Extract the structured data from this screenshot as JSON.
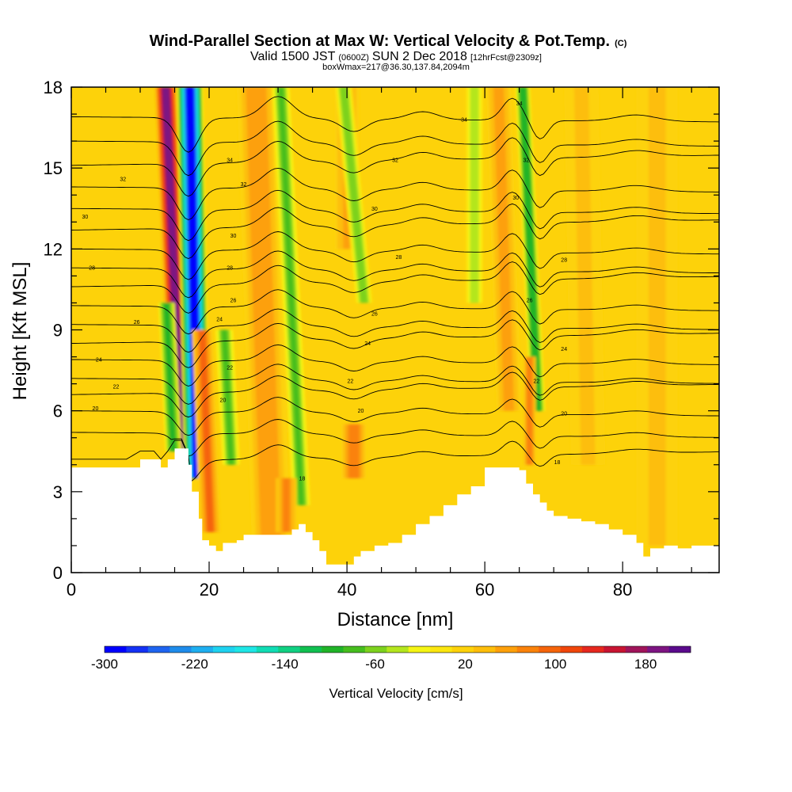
{
  "title": {
    "main": "Wind-Parallel Section at Max W: Vertical Velocity & Pot.Temp.",
    "main_unit": "(C)",
    "valid_prefix": "Valid 1500 JST",
    "valid_utc": "(0600Z)",
    "valid_date": "SUN 2 Dec 2018",
    "forecast": "[12hrFcst@2309z]",
    "box": "boxWmax=217@36.30,137.84,2094m"
  },
  "chart_data": {
    "type": "heatmap",
    "xlabel": "Distance [nm]",
    "ylabel": "Height [Kft MSL]",
    "xlim": [
      0,
      94
    ],
    "ylim": [
      0,
      18
    ],
    "x_ticks": [
      0,
      20,
      40,
      60,
      80
    ],
    "y_ticks": [
      0,
      3,
      6,
      9,
      12,
      15,
      18
    ],
    "colorbar": {
      "label": "Vertical Velocity [cm/s]",
      "tick_labels": [
        -300,
        -220,
        -140,
        -60,
        20,
        100,
        180
      ],
      "bounds": [
        -300,
        -280,
        -260,
        -240,
        -220,
        -200,
        -180,
        -160,
        -140,
        -120,
        -100,
        -80,
        -60,
        -40,
        -20,
        0,
        20,
        40,
        60,
        80,
        100,
        120,
        140,
        160,
        180,
        200,
        220
      ],
      "colors": [
        "#0000ff",
        "#1432f5",
        "#1e64f0",
        "#1e8ceb",
        "#1eaff0",
        "#1ed2f0",
        "#1ee6e6",
        "#10dcb4",
        "#10d082",
        "#10c050",
        "#20b428",
        "#46be1e",
        "#7dd21e",
        "#b4e61e",
        "#f5f514",
        "#fbe60f",
        "#fdd20a",
        "#fdbe0a",
        "#fda00a",
        "#fa820a",
        "#f5640a",
        "#f0460a",
        "#e6281e",
        "#c81432",
        "#a0145a",
        "#7d1482",
        "#5a0a8c"
      ]
    },
    "background_w": 25,
    "velocity_features": [
      {
        "x": 16.0,
        "y0": 4.5,
        "y1": 18.0,
        "lean": -2.3,
        "width": 1.6,
        "value": 210
      },
      {
        "x": 18.3,
        "y0": 3.5,
        "y1": 18.0,
        "lean": -1.1,
        "width": 1.9,
        "value": -290
      },
      {
        "x": 14.8,
        "y0": 4.5,
        "y1": 10.0,
        "lean": -1.0,
        "width": 1.2,
        "value": -90
      },
      {
        "x": 20.2,
        "y0": 1.5,
        "y1": 9.0,
        "lean": -1.2,
        "width": 1.5,
        "value": 100
      },
      {
        "x": 23.2,
        "y0": 4.0,
        "y1": 9.0,
        "lean": -1.0,
        "width": 1.3,
        "value": -70
      },
      {
        "x": 29.0,
        "y0": 1.0,
        "y1": 18.0,
        "lean": -2.2,
        "width": 2.8,
        "value": 75
      },
      {
        "x": 33.4,
        "y0": 2.5,
        "y1": 18.0,
        "lean": -3.0,
        "width": 1.3,
        "value": -70
      },
      {
        "x": 31.2,
        "y0": 1.5,
        "y1": 3.5,
        "lean": 0.0,
        "width": 1.5,
        "value": 80
      },
      {
        "x": 41.0,
        "y0": 3.5,
        "y1": 5.5,
        "lean": 0.0,
        "width": 1.8,
        "value": 95
      },
      {
        "x": 40.0,
        "y0": 12.0,
        "y1": 18.0,
        "lean": 0.0,
        "width": 1.8,
        "value": 60
      },
      {
        "x": 42.5,
        "y0": 10.0,
        "y1": 18.0,
        "lean": -3.0,
        "width": 1.2,
        "value": -60
      },
      {
        "x": 58.5,
        "y0": 10.0,
        "y1": 18.0,
        "lean": 0.0,
        "width": 1.2,
        "value": -40
      },
      {
        "x": 63.5,
        "y0": 6.0,
        "y1": 18.0,
        "lean": -1.5,
        "width": 1.8,
        "value": 70
      },
      {
        "x": 67.7,
        "y0": 6.0,
        "y1": 18.0,
        "lean": -2.2,
        "width": 1.1,
        "value": -100
      },
      {
        "x": 66.5,
        "y0": 4.0,
        "y1": 8.0,
        "lean": 0.0,
        "width": 0.9,
        "value": 90
      },
      {
        "x": 75.0,
        "y0": 4.0,
        "y1": 18.0,
        "lean": -1.0,
        "width": 2.5,
        "value": 45
      },
      {
        "x": 85.0,
        "y0": 1.0,
        "y1": 18.0,
        "lean": 0.0,
        "width": 3.0,
        "value": 45
      }
    ],
    "terrain": {
      "x": [
        0,
        4,
        6,
        8,
        10,
        12,
        13,
        14,
        15,
        16,
        17,
        17.5,
        18,
        18.5,
        19,
        20,
        21,
        22,
        23,
        24,
        25,
        27,
        29,
        31,
        32,
        33,
        34,
        35,
        36,
        37,
        38,
        39,
        40,
        41,
        42,
        44,
        46,
        48,
        50,
        52,
        54,
        56,
        58,
        60,
        62,
        64,
        65,
        66,
        67,
        68,
        69,
        70,
        72,
        74,
        76,
        78,
        80,
        82,
        83,
        84,
        86,
        88,
        90,
        92,
        94
      ],
      "height": [
        3.9,
        3.9,
        3.9,
        3.9,
        4.2,
        4.2,
        3.9,
        4.2,
        4.6,
        4.6,
        4.0,
        3.0,
        3.0,
        2.0,
        1.2,
        1.0,
        0.8,
        1.1,
        1.1,
        1.2,
        1.4,
        1.4,
        1.4,
        1.4,
        1.6,
        1.8,
        1.5,
        1.2,
        0.8,
        0.3,
        0.3,
        0.3,
        0.3,
        0.6,
        0.8,
        1.0,
        1.1,
        1.4,
        1.8,
        2.1,
        2.5,
        2.9,
        3.2,
        3.9,
        3.9,
        3.9,
        3.8,
        3.3,
        2.9,
        2.6,
        2.3,
        2.1,
        2.0,
        1.9,
        1.8,
        1.6,
        1.4,
        1.1,
        0.6,
        0.9,
        1.0,
        0.9,
        1.0,
        1.0,
        1.0
      ]
    },
    "isentropes": {
      "levels": [
        18,
        19,
        20,
        21,
        22,
        23,
        24,
        25,
        26,
        27,
        28,
        29,
        30,
        31,
        32,
        33,
        34,
        35
      ],
      "heights_at_x0": [
        4.1,
        5.2,
        6.0,
        6.6,
        7.2,
        7.9,
        8.5,
        9.2,
        9.9,
        10.6,
        11.3,
        12.0,
        12.7,
        13.5,
        14.3,
        15.1,
        16.0,
        16.9
      ],
      "labels": [
        {
          "text": "34",
          "x": 57.0,
          "y": 16.8
        },
        {
          "text": "32",
          "x": 47.0,
          "y": 15.3
        },
        {
          "text": "30",
          "x": 44.0,
          "y": 13.5
        },
        {
          "text": "28",
          "x": 47.5,
          "y": 11.7
        },
        {
          "text": "26",
          "x": 44.0,
          "y": 9.6
        },
        {
          "text": "24",
          "x": 43.0,
          "y": 8.5
        },
        {
          "text": "22",
          "x": 40.5,
          "y": 7.1
        },
        {
          "text": "20",
          "x": 42.0,
          "y": 6.0
        },
        {
          "text": "18",
          "x": 33.5,
          "y": 3.5
        },
        {
          "text": "32",
          "x": 7.5,
          "y": 14.6
        },
        {
          "text": "30",
          "x": 2.0,
          "y": 13.2
        },
        {
          "text": "28",
          "x": 3.0,
          "y": 11.3
        },
        {
          "text": "26",
          "x": 9.5,
          "y": 9.3
        },
        {
          "text": "24",
          "x": 4.0,
          "y": 7.9
        },
        {
          "text": "22",
          "x": 6.5,
          "y": 6.9
        },
        {
          "text": "20",
          "x": 3.5,
          "y": 6.1
        },
        {
          "text": "34",
          "x": 23.0,
          "y": 15.3
        },
        {
          "text": "32",
          "x": 25.0,
          "y": 14.4
        },
        {
          "text": "30",
          "x": 23.5,
          "y": 12.5
        },
        {
          "text": "28",
          "x": 23.0,
          "y": 11.3
        },
        {
          "text": "26",
          "x": 23.5,
          "y": 10.1
        },
        {
          "text": "24",
          "x": 21.5,
          "y": 9.4
        },
        {
          "text": "22",
          "x": 23.0,
          "y": 7.6
        },
        {
          "text": "20",
          "x": 22.0,
          "y": 6.4
        },
        {
          "text": "34",
          "x": 65.0,
          "y": 17.4
        },
        {
          "text": "32",
          "x": 66.0,
          "y": 15.3
        },
        {
          "text": "30",
          "x": 64.5,
          "y": 13.9
        },
        {
          "text": "28",
          "x": 71.5,
          "y": 11.6
        },
        {
          "text": "26",
          "x": 66.5,
          "y": 10.1
        },
        {
          "text": "24",
          "x": 71.5,
          "y": 8.3
        },
        {
          "text": "22",
          "x": 67.5,
          "y": 7.1
        },
        {
          "text": "20",
          "x": 71.5,
          "y": 5.9
        },
        {
          "text": "18",
          "x": 70.5,
          "y": 4.1
        }
      ]
    }
  }
}
